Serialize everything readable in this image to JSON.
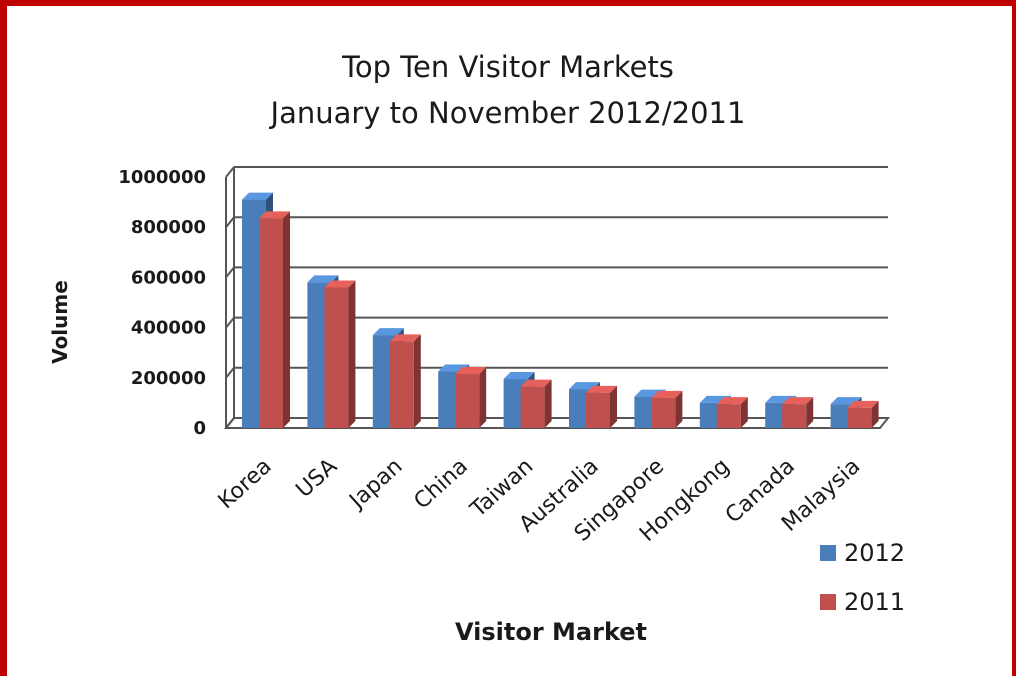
{
  "colors": {
    "frame": "#c00000",
    "series_2012": "#4a7ebb",
    "series_2011": "#c0504d",
    "gridline": "#555555"
  },
  "chart_data": {
    "type": "bar",
    "title_lines": [
      "Top Ten Visitor Markets",
      "January to November 2012/2011"
    ],
    "xlabel": "Visitor Market",
    "ylabel": "Volume",
    "ylim": [
      0,
      1000000
    ],
    "yticks": [
      "0",
      "200000",
      "400000",
      "600000",
      "800000",
      "1000000"
    ],
    "categories": [
      "Korea",
      "USA",
      "Japan",
      "China",
      "Taiwan",
      "Australia",
      "Singapore",
      "Hongkong",
      "Canada",
      "Malaysia"
    ],
    "series": [
      {
        "name": "2012",
        "values": [
          910000,
          580000,
          370000,
          225000,
          195000,
          155000,
          125000,
          100000,
          100000,
          95000
        ]
      },
      {
        "name": "2011",
        "values": [
          835000,
          560000,
          345000,
          215000,
          165000,
          140000,
          120000,
          95000,
          95000,
          80000
        ]
      }
    ],
    "grid": true,
    "legend_position": "bottom-right",
    "style": "3d-clustered-column"
  }
}
